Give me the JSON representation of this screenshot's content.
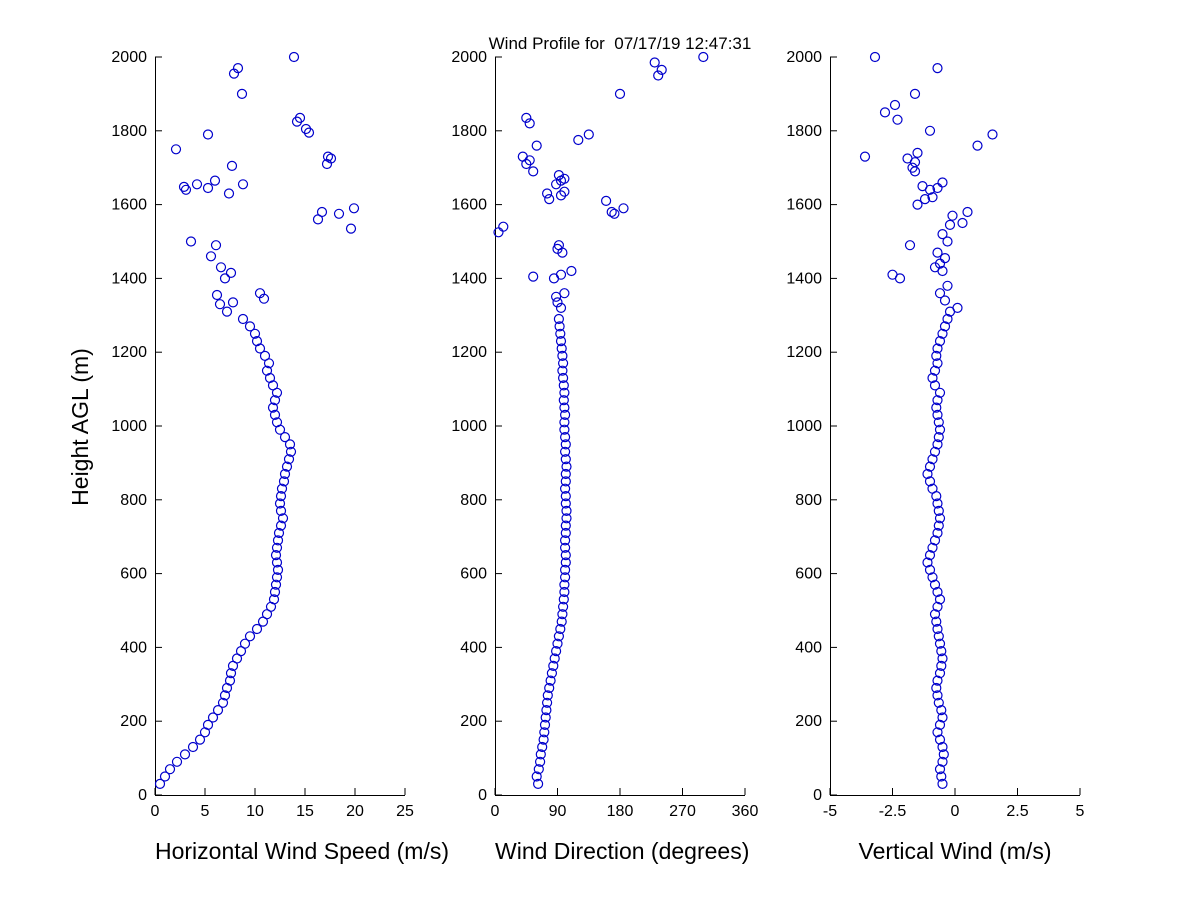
{
  "title": "Wind Profile for  07/17/19 12:47:31",
  "ylabel": "Height AGL (m)",
  "marker_color": "#0000CC",
  "axis_color": "#000000",
  "profile_heights": [
    30,
    50,
    70,
    90,
    110,
    130,
    150,
    170,
    190,
    210,
    230,
    250,
    270,
    290,
    310,
    330,
    350,
    370,
    390,
    410,
    430,
    450,
    470,
    490,
    510,
    530,
    550,
    570,
    590,
    610,
    630,
    650,
    670,
    690,
    710,
    730,
    750,
    770,
    790,
    810,
    830,
    850,
    870,
    890,
    910,
    930,
    950,
    970,
    990,
    1010,
    1030,
    1050,
    1070,
    1090,
    1110,
    1130,
    1150,
    1170,
    1190,
    1210,
    1230,
    1250,
    1270,
    1290
  ],
  "chart_data": [
    {
      "type": "scatter",
      "xlabel": "Horizontal Wind Speed (m/s)",
      "xlim": [
        0,
        25
      ],
      "xticks": [
        0,
        5,
        10,
        15,
        20,
        25
      ],
      "ylim": [
        0,
        2000
      ],
      "yticks": [
        0,
        200,
        400,
        600,
        800,
        1000,
        1200,
        1400,
        1600,
        1800,
        2000
      ],
      "values_dense": [
        0.5,
        1.0,
        1.5,
        2.2,
        3.0,
        3.8,
        4.5,
        5.0,
        5.3,
        5.8,
        6.3,
        6.8,
        7.0,
        7.2,
        7.5,
        7.6,
        7.8,
        8.2,
        8.6,
        9.0,
        9.5,
        10.2,
        10.8,
        11.2,
        11.6,
        11.9,
        12.0,
        12.1,
        12.2,
        12.3,
        12.2,
        12.1,
        12.2,
        12.3,
        12.4,
        12.6,
        12.8,
        12.6,
        12.5,
        12.6,
        12.7,
        12.9,
        13.0,
        13.2,
        13.4,
        13.6,
        13.5,
        13.0,
        12.5,
        12.2,
        12.0,
        11.8,
        12.0,
        12.2,
        11.8,
        11.5,
        11.2,
        11.4,
        11.0,
        10.5,
        10.2,
        10.0,
        9.5,
        8.8
      ],
      "extra_points": [
        [
          7.2,
          1310
        ],
        [
          6.5,
          1330
        ],
        [
          7.8,
          1335
        ],
        [
          6.2,
          1355
        ],
        [
          10.5,
          1360
        ],
        [
          10.9,
          1345
        ],
        [
          7.0,
          1400
        ],
        [
          7.6,
          1415
        ],
        [
          6.6,
          1430
        ],
        [
          5.6,
          1460
        ],
        [
          6.1,
          1490
        ],
        [
          3.6,
          1500
        ],
        [
          19.6,
          1535
        ],
        [
          16.3,
          1560
        ],
        [
          18.4,
          1575
        ],
        [
          19.9,
          1590
        ],
        [
          16.7,
          1580
        ],
        [
          7.4,
          1630
        ],
        [
          5.3,
          1645
        ],
        [
          3.1,
          1640
        ],
        [
          4.2,
          1655
        ],
        [
          8.8,
          1655
        ],
        [
          6.0,
          1665
        ],
        [
          2.9,
          1648
        ],
        [
          7.7,
          1705
        ],
        [
          17.2,
          1710
        ],
        [
          17.6,
          1725
        ],
        [
          17.3,
          1730
        ],
        [
          2.1,
          1750
        ],
        [
          5.3,
          1790
        ],
        [
          15.4,
          1795
        ],
        [
          15.1,
          1805
        ],
        [
          14.2,
          1825
        ],
        [
          14.5,
          1835
        ],
        [
          8.7,
          1900
        ],
        [
          7.9,
          1955
        ],
        [
          8.3,
          1970
        ],
        [
          13.9,
          2000
        ]
      ]
    },
    {
      "type": "scatter",
      "xlabel": "Wind Direction (degrees)",
      "xlim": [
        0,
        360
      ],
      "xticks": [
        0,
        90,
        180,
        270,
        360
      ],
      "ylim": [
        0,
        2000
      ],
      "yticks": [
        0,
        200,
        400,
        600,
        800,
        1000,
        1200,
        1400,
        1600,
        1800,
        2000
      ],
      "values_dense": [
        62,
        60,
        63,
        65,
        66,
        68,
        70,
        71,
        72,
        73,
        74,
        75,
        76,
        78,
        80,
        82,
        84,
        86,
        88,
        90,
        92,
        94,
        96,
        97,
        98,
        99,
        100,
        100,
        101,
        101,
        102,
        102,
        101,
        101,
        102,
        102,
        103,
        103,
        102,
        102,
        101,
        102,
        102,
        103,
        102,
        101,
        102,
        101,
        100,
        100,
        101,
        100,
        99,
        100,
        99,
        98,
        97,
        98,
        97,
        96,
        95,
        94,
        93,
        92
      ],
      "extra_points": [
        [
          95,
          1320
        ],
        [
          90,
          1335
        ],
        [
          88,
          1350
        ],
        [
          100,
          1360
        ],
        [
          110,
          1420
        ],
        [
          85,
          1400
        ],
        [
          55,
          1405
        ],
        [
          95,
          1410
        ],
        [
          90,
          1480
        ],
        [
          97,
          1470
        ],
        [
          92,
          1490
        ],
        [
          5,
          1525
        ],
        [
          12,
          1540
        ],
        [
          168,
          1580
        ],
        [
          185,
          1590
        ],
        [
          160,
          1610
        ],
        [
          172,
          1575
        ],
        [
          95,
          1625
        ],
        [
          100,
          1635
        ],
        [
          75,
          1630
        ],
        [
          78,
          1615
        ],
        [
          88,
          1655
        ],
        [
          95,
          1665
        ],
        [
          100,
          1670
        ],
        [
          92,
          1680
        ],
        [
          55,
          1690
        ],
        [
          45,
          1710
        ],
        [
          50,
          1720
        ],
        [
          40,
          1730
        ],
        [
          60,
          1760
        ],
        [
          135,
          1790
        ],
        [
          120,
          1775
        ],
        [
          50,
          1820
        ],
        [
          45,
          1835
        ],
        [
          180,
          1900
        ],
        [
          235,
          1950
        ],
        [
          240,
          1965
        ],
        [
          230,
          1985
        ],
        [
          300,
          2000
        ]
      ]
    },
    {
      "type": "scatter",
      "xlabel": "Vertical Wind (m/s)",
      "xlim": [
        -5,
        5
      ],
      "xticks": [
        -5,
        -2.5,
        0,
        2.5,
        5
      ],
      "ylim": [
        0,
        2000
      ],
      "yticks": [
        0,
        200,
        400,
        600,
        800,
        1000,
        1200,
        1400,
        1600,
        1800,
        2000
      ],
      "values_dense": [
        -0.5,
        -0.55,
        -0.6,
        -0.5,
        -0.45,
        -0.5,
        -0.6,
        -0.7,
        -0.6,
        -0.5,
        -0.55,
        -0.65,
        -0.7,
        -0.75,
        -0.7,
        -0.6,
        -0.55,
        -0.5,
        -0.55,
        -0.6,
        -0.65,
        -0.7,
        -0.75,
        -0.8,
        -0.7,
        -0.6,
        -0.7,
        -0.8,
        -0.9,
        -1.0,
        -1.1,
        -1.0,
        -0.9,
        -0.8,
        -0.7,
        -0.65,
        -0.6,
        -0.65,
        -0.7,
        -0.75,
        -0.9,
        -1.0,
        -1.1,
        -1.0,
        -0.9,
        -0.8,
        -0.7,
        -0.65,
        -0.6,
        -0.65,
        -0.7,
        -0.75,
        -0.7,
        -0.6,
        -0.8,
        -0.9,
        -0.8,
        -0.7,
        -0.75,
        -0.7,
        -0.6,
        -0.5,
        -0.4,
        -0.3
      ],
      "extra_points": [
        [
          -0.2,
          1310
        ],
        [
          0.1,
          1320
        ],
        [
          -0.4,
          1340
        ],
        [
          -0.6,
          1360
        ],
        [
          -0.3,
          1380
        ],
        [
          -2.2,
          1400
        ],
        [
          -2.5,
          1410
        ],
        [
          -0.5,
          1420
        ],
        [
          -0.8,
          1430
        ],
        [
          -0.6,
          1440
        ],
        [
          -0.4,
          1455
        ],
        [
          -0.7,
          1470
        ],
        [
          -1.8,
          1490
        ],
        [
          -0.3,
          1500
        ],
        [
          -0.5,
          1520
        ],
        [
          -0.2,
          1545
        ],
        [
          0.3,
          1550
        ],
        [
          -0.1,
          1570
        ],
        [
          0.5,
          1580
        ],
        [
          -1.5,
          1600
        ],
        [
          -1.2,
          1615
        ],
        [
          -0.9,
          1620
        ],
        [
          -1.0,
          1640
        ],
        [
          -0.7,
          1645
        ],
        [
          -1.3,
          1650
        ],
        [
          -0.5,
          1660
        ],
        [
          -1.6,
          1690
        ],
        [
          -1.7,
          1700
        ],
        [
          -1.6,
          1715
        ],
        [
          -1.9,
          1725
        ],
        [
          -3.6,
          1730
        ],
        [
          -1.5,
          1740
        ],
        [
          0.9,
          1760
        ],
        [
          1.5,
          1790
        ],
        [
          -1.0,
          1800
        ],
        [
          -2.3,
          1830
        ],
        [
          -2.8,
          1850
        ],
        [
          -2.4,
          1870
        ],
        [
          -1.6,
          1900
        ],
        [
          -0.7,
          1970
        ],
        [
          -3.2,
          2000
        ]
      ]
    }
  ]
}
